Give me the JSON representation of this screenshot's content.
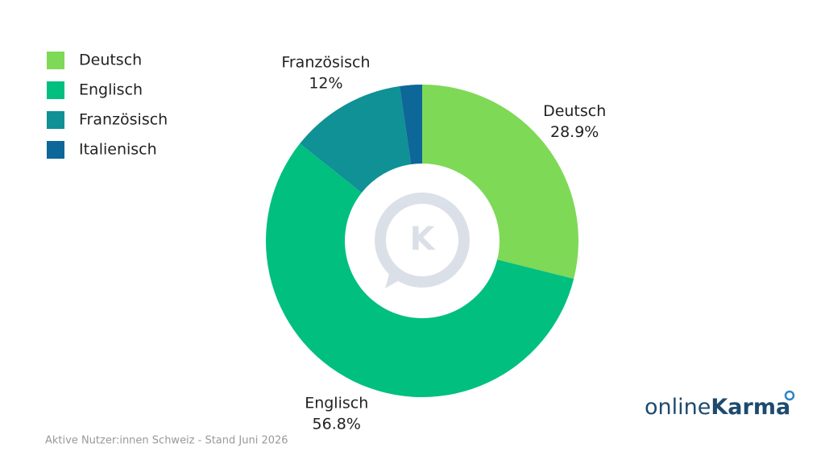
{
  "chart_data": {
    "type": "donut",
    "categories": [
      "Deutsch",
      "Englisch",
      "Französisch",
      "Italienisch"
    ],
    "values": [
      28.9,
      56.8,
      12,
      2.3
    ],
    "value_labels": [
      "28.9%",
      "56.8%",
      "12%",
      null
    ],
    "colors": [
      "#7ed957",
      "#00bf7f",
      "#0f9196",
      "#0d6799"
    ],
    "legend": "top-left",
    "source": "Aktive Nutzer:innen Schweiz - Stand Juni 2026",
    "logo": {
      "prefix": "online",
      "brand": "Karma"
    }
  }
}
